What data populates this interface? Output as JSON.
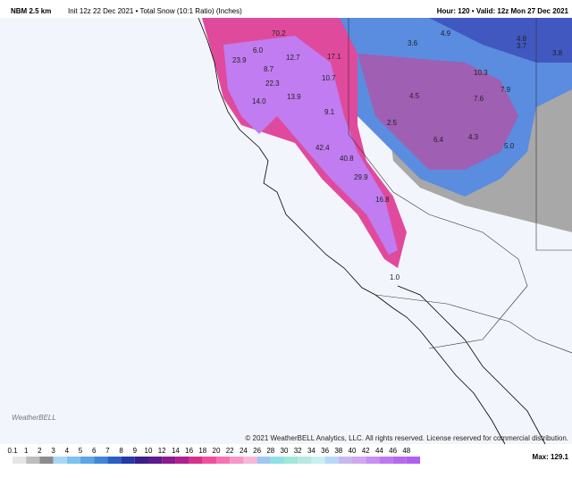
{
  "header": {
    "model": "NBM 2.5 km",
    "subtitle": "Init 12z 22 Dec 2021 • Total Snow (10:1 Ratio) (Inches)",
    "valid": "Hour: 120 • Valid: 12z Mon 27 Dec 2021"
  },
  "map_labels": [
    "70.2",
    "4.9",
    "4.8",
    "3.6",
    "3.7",
    "3.8",
    "23.9",
    "12.7",
    "17.1",
    "8.7",
    "22.3",
    "10.7",
    "10.3",
    "7.9",
    "13.9",
    "14.0",
    "4.5",
    "7.6",
    "9.1",
    "2.5",
    "6.4",
    "4.3",
    "5.0",
    "42.4",
    "40.8",
    "29.9",
    "16.8",
    "1.0",
    "6.0"
  ],
  "logo": "WeatherBELL",
  "copyright": "© 2021 WeatherBELL Analytics, LLC. All rights reserved. License reserved for commercial distribution.",
  "max": "Max: 129.1",
  "colorbar": {
    "labels": [
      "0.1",
      "1",
      "2",
      "3",
      "4",
      "5",
      "6",
      "7",
      "8",
      "9",
      "10",
      "12",
      "14",
      "16",
      "18",
      "20",
      "22",
      "24",
      "26",
      "28",
      "30",
      "32",
      "34",
      "36",
      "38",
      "40",
      "42",
      "44",
      "46",
      "48"
    ],
    "colors": [
      "#e6e6e6",
      "#bdbdbd",
      "#8c8c8c",
      "#a6d8f5",
      "#7ec3ee",
      "#5aa6e6",
      "#3f86db",
      "#2a5fc8",
      "#243aa8",
      "#3b1f8a",
      "#5e1a8e",
      "#8a1a8f",
      "#b0208f",
      "#d8308e",
      "#f0509a",
      "#f573b3",
      "#f796c8",
      "#f5b8d8",
      "#a0c8f0",
      "#8ee0e6",
      "#9fe8d8",
      "#b8e8e0",
      "#c8f0f0",
      "#b8d8f8",
      "#c8b8f0",
      "#d0a8f0",
      "#c890f0",
      "#c078f0",
      "#b868f0",
      "#b060f0"
    ]
  }
}
